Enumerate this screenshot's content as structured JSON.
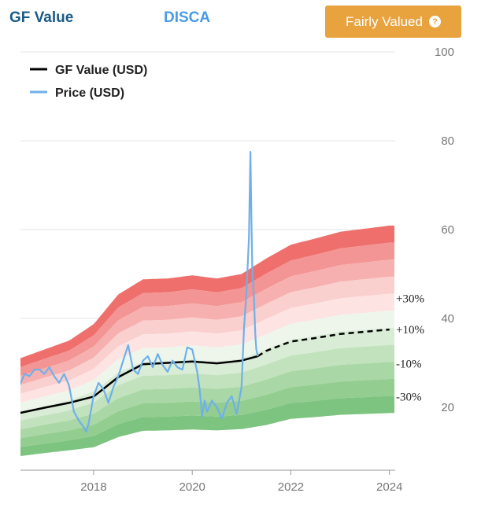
{
  "header": {
    "gf_title": "GF Value",
    "ticker": "DISCA",
    "valuation_badge": "Fairly Valued",
    "help_glyph": "?"
  },
  "colors": {
    "badge": "#e8a33f",
    "gf_line": "#000000",
    "price_line": "#6fb0ea",
    "band_top": "#ef6f6c",
    "band_green": "#7cc47f"
  },
  "chart_data": {
    "type": "line",
    "xlim": [
      2016.5,
      2024.1
    ],
    "ylim": [
      0,
      100
    ],
    "x_ticks": [
      2018,
      2020,
      2022,
      2024
    ],
    "x_tick_labels": [
      "2018",
      "2020",
      "2022",
      "2024"
    ],
    "y_ticks": [
      20,
      40,
      60,
      80,
      100
    ],
    "y_tick_labels": [
      "20",
      "40",
      "60",
      "80",
      "100"
    ],
    "grid": true,
    "legend": {
      "placement": "top-left",
      "entries": [
        "GF Value (USD)",
        "Price (USD)"
      ]
    },
    "band_labels": [
      {
        "label": "+30%",
        "value": 44.5
      },
      {
        "label": "+10%",
        "value": 37.5
      },
      {
        "label": "-10%",
        "value": 29.8
      },
      {
        "label": "-30%",
        "value": 22.4
      }
    ],
    "gf_value": {
      "name": "GF Value (USD)",
      "x": [
        2016.5,
        2017.0,
        2017.5,
        2018.0,
        2018.5,
        2019.0,
        2019.5,
        2020.0,
        2020.5,
        2021.0,
        2021.33,
        2021.5,
        2022.0,
        2022.5,
        2023.0,
        2023.5,
        2024.0
      ],
      "y": [
        18.7,
        19.9,
        21.0,
        22.4,
        26.8,
        29.7,
        30.0,
        30.3,
        29.9,
        30.5,
        31.5,
        32.7,
        34.8,
        35.6,
        36.5,
        37.0,
        37.5
      ],
      "dashed_from": 2021.33
    },
    "band_top": {
      "x": [
        2016.5,
        2017.0,
        2017.5,
        2018.0,
        2018.5,
        2019.0,
        2019.5,
        2020.0,
        2020.5,
        2021.0,
        2021.5,
        2022.0,
        2022.5,
        2023.0,
        2023.5,
        2024.0
      ],
      "y": [
        31.0,
        33.0,
        35.0,
        38.7,
        45.4,
        48.8,
        49.0,
        49.7,
        49.0,
        50.0,
        53.5,
        56.6,
        58.0,
        59.5,
        60.2,
        60.9
      ]
    },
    "band_bottom": {
      "x": [
        2016.5,
        2017.0,
        2017.5,
        2018.0,
        2018.5,
        2019.0,
        2019.5,
        2020.0,
        2020.5,
        2021.0,
        2021.5,
        2022.0,
        2022.5,
        2023.0,
        2023.5,
        2024.0
      ],
      "y": [
        9.0,
        9.7,
        10.3,
        11.0,
        13.3,
        14.7,
        14.8,
        15.0,
        14.8,
        15.1,
        16.0,
        17.4,
        17.8,
        18.3,
        18.5,
        18.7
      ]
    },
    "price": {
      "name": "Price (USD)",
      "x": [
        2016.5,
        2016.6,
        2016.7,
        2016.8,
        2016.9,
        2017.0,
        2017.1,
        2017.2,
        2017.3,
        2017.4,
        2017.5,
        2017.55,
        2017.6,
        2017.7,
        2017.8,
        2017.85,
        2017.9,
        2017.95,
        2018.0,
        2018.1,
        2018.2,
        2018.3,
        2018.4,
        2018.5,
        2018.6,
        2018.7,
        2018.8,
        2018.9,
        2019.0,
        2019.1,
        2019.2,
        2019.3,
        2019.4,
        2019.5,
        2019.6,
        2019.7,
        2019.8,
        2019.9,
        2020.0,
        2020.1,
        2020.15,
        2020.2,
        2020.25,
        2020.3,
        2020.4,
        2020.5,
        2020.6,
        2020.7,
        2020.8,
        2020.9,
        2021.0,
        2021.05,
        2021.1,
        2021.15,
        2021.18,
        2021.2,
        2021.22,
        2021.25,
        2021.28,
        2021.3,
        2021.33
      ],
      "y": [
        25.0,
        27.5,
        27.0,
        28.5,
        28.5,
        27.5,
        29.0,
        27.0,
        25.5,
        27.5,
        25.0,
        22.0,
        19.0,
        17.0,
        15.5,
        14.5,
        16.5,
        19.5,
        22.5,
        25.5,
        24.0,
        21.0,
        24.5,
        27.0,
        30.5,
        34.0,
        28.5,
        27.5,
        30.5,
        31.5,
        29.0,
        32.0,
        29.5,
        28.0,
        30.5,
        29.0,
        28.5,
        33.5,
        33.0,
        28.0,
        24.0,
        18.0,
        21.5,
        19.0,
        21.5,
        20.0,
        17.5,
        21.0,
        22.5,
        18.5,
        24.5,
        38.0,
        46.0,
        58.0,
        77.5,
        62.0,
        50.0,
        45.0,
        36.0,
        33.0,
        31.5
      ]
    }
  }
}
